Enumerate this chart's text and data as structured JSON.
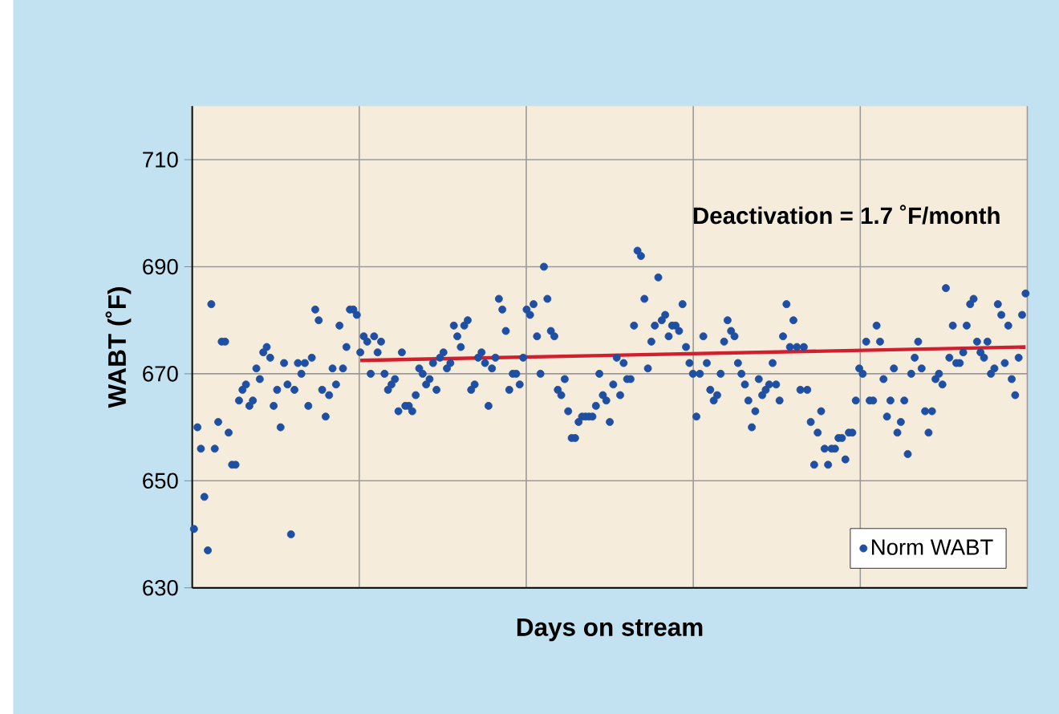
{
  "chart_data": {
    "type": "scatter",
    "xlabel": "Days on stream",
    "ylabel": "WABT (˚F)",
    "annotations": [
      "Deactivation = 1.7 ˚F/month"
    ],
    "categories": [
      null,
      null,
      null,
      null,
      null,
      null,
      null,
      null,
      null,
      null,
      null,
      null,
      null,
      null,
      null,
      null,
      null,
      null,
      null,
      null,
      null,
      null,
      null,
      null,
      null,
      null,
      null,
      null,
      null,
      null,
      null,
      null,
      null,
      null,
      null,
      null,
      null,
      null,
      null,
      null,
      null,
      null,
      null,
      null,
      null,
      null,
      null,
      null,
      null,
      null,
      null,
      null,
      null,
      null,
      null,
      null,
      null,
      null,
      null,
      null,
      null,
      null,
      null,
      null,
      null,
      null,
      null,
      null,
      null,
      null,
      null,
      null,
      null,
      null,
      null,
      null,
      null,
      null,
      null,
      null,
      null,
      null,
      null,
      null,
      null,
      null,
      null,
      null,
      null,
      null,
      null,
      null,
      null,
      null,
      null,
      null,
      null,
      null,
      null,
      null,
      null,
      null,
      null,
      null,
      null,
      null,
      null,
      null,
      null,
      null,
      null,
      null,
      null,
      null,
      null,
      null,
      null,
      null,
      null,
      null,
      null,
      null,
      null,
      null,
      null,
      null,
      null,
      null,
      null,
      null,
      null,
      null,
      null,
      null,
      null,
      null,
      null,
      null,
      null,
      null,
      null,
      null,
      null,
      null,
      null,
      null,
      null,
      null,
      null,
      null,
      null,
      null,
      null,
      null,
      null,
      null,
      null,
      null,
      null,
      null,
      null,
      null,
      null,
      null,
      null,
      null,
      null,
      null,
      null,
      null,
      null,
      null,
      null,
      null,
      null,
      null,
      null,
      null,
      null,
      null,
      null,
      null,
      null,
      null,
      null,
      null,
      null,
      null,
      null,
      null,
      null,
      null,
      null,
      null,
      null,
      null,
      null,
      null,
      null,
      null,
      null,
      null,
      null,
      null,
      null,
      null,
      null,
      null,
      null,
      null,
      null,
      null,
      null,
      null,
      null,
      null,
      null,
      null,
      null,
      null,
      null,
      null,
      null,
      null,
      null,
      null,
      null,
      null,
      null,
      null,
      null,
      null,
      null,
      null,
      null,
      null,
      null,
      null,
      null,
      null,
      null
    ],
    "series": [
      {
        "name": "Norm WABT",
        "marker": "circle",
        "color": "#1f4fa3",
        "values": [
          641,
          660,
          656,
          647,
          637,
          683,
          656,
          661,
          676,
          676,
          659,
          653,
          653,
          665,
          667,
          668,
          664,
          665,
          671,
          669,
          674,
          675,
          673,
          664,
          667,
          660,
          672,
          668,
          640,
          667,
          672,
          670,
          672,
          664,
          673,
          682,
          680,
          667,
          662,
          666,
          671,
          668,
          679,
          671,
          675,
          682,
          682,
          681,
          674,
          677,
          676,
          670,
          677,
          674,
          676,
          670,
          667,
          668,
          669,
          663,
          674,
          664,
          664,
          663,
          666,
          671,
          670,
          668,
          669,
          672,
          667,
          673,
          674,
          671,
          672,
          679,
          677,
          675,
          679,
          680,
          667,
          668,
          673,
          674,
          672,
          664,
          671,
          673,
          684,
          682,
          678,
          667,
          670,
          670,
          668,
          673,
          682,
          681,
          683,
          677,
          670,
          690,
          684,
          678,
          677,
          667,
          666,
          669,
          663,
          658,
          658,
          661,
          662,
          662,
          662,
          662,
          664,
          670,
          666,
          665,
          661,
          668,
          673,
          666,
          672,
          669,
          669,
          679,
          693,
          692,
          684,
          671,
          676,
          679,
          688,
          680,
          681,
          677,
          679,
          679,
          678,
          683,
          675,
          672,
          670,
          662,
          670,
          677,
          672,
          667,
          665,
          666,
          670,
          676,
          680,
          678,
          677,
          672,
          670,
          668,
          665,
          660,
          663,
          669,
          666,
          667,
          668,
          672,
          668,
          665,
          677,
          683,
          675,
          680,
          675,
          667,
          675,
          667,
          661,
          653,
          659,
          663,
          656,
          653,
          656,
          656,
          658,
          658,
          654,
          659,
          659,
          665,
          671,
          670,
          676,
          665,
          665,
          679,
          676,
          669,
          662,
          665,
          671,
          659,
          661,
          665,
          655,
          670,
          673,
          676,
          671,
          663,
          659,
          663,
          669,
          670,
          668,
          686,
          673,
          679,
          672,
          672,
          674,
          679,
          683,
          684,
          676,
          674,
          673,
          676,
          670,
          671,
          683,
          681,
          672,
          679,
          669,
          666,
          673,
          681,
          685
        ]
      },
      {
        "type": "line",
        "color": "#d0202e",
        "values": [
          null,
          null,
          null,
          null,
          null,
          null,
          null,
          null,
          null,
          null,
          null,
          null,
          null,
          null,
          null,
          null,
          null,
          null,
          null,
          null,
          null,
          null,
          null,
          null,
          null,
          null,
          null,
          null,
          null,
          null,
          null,
          null,
          null,
          null,
          null,
          null,
          null,
          null,
          null,
          null,
          null,
          null,
          null,
          null,
          null,
          null,
          null,
          null,
          672.5,
          null,
          null,
          null,
          null,
          null,
          null,
          null,
          null,
          null,
          null,
          null,
          null,
          null,
          null,
          null,
          null,
          null,
          null,
          null,
          null,
          null,
          null,
          null,
          null,
          null,
          null,
          null,
          null,
          null,
          null,
          null,
          null,
          null,
          null,
          null,
          null,
          null,
          null,
          null,
          null,
          null,
          null,
          null,
          null,
          null,
          null,
          null,
          null,
          null,
          null,
          null,
          null,
          null,
          null,
          null,
          null,
          null,
          null,
          null,
          null,
          null,
          null,
          null,
          null,
          null,
          null,
          null,
          null,
          null,
          null,
          null,
          null,
          null,
          null,
          null,
          null,
          null,
          null,
          null,
          null,
          null,
          null,
          null,
          null,
          null,
          null,
          null,
          null,
          null,
          null,
          null,
          null,
          null,
          null,
          null,
          null,
          null,
          null,
          null,
          null,
          null,
          null,
          null,
          null,
          null,
          null,
          null,
          null,
          null,
          null,
          null,
          null,
          null,
          null,
          null,
          null,
          null,
          null,
          null,
          null,
          null,
          null,
          null,
          null,
          null,
          null,
          null,
          null,
          null,
          null,
          null,
          null,
          null,
          null,
          null,
          null,
          null,
          null,
          null,
          null,
          null,
          null,
          null,
          null,
          null,
          null,
          null,
          null,
          null,
          null,
          null,
          null,
          null,
          null,
          null,
          null,
          null,
          null,
          null,
          null,
          null,
          null,
          null,
          null,
          null,
          null,
          null,
          null,
          null,
          null,
          null,
          null,
          null,
          null,
          null,
          null,
          null,
          null,
          null,
          null,
          null,
          null,
          null,
          null,
          null,
          null,
          null,
          null,
          null,
          null,
          null,
          675
        ]
      }
    ],
    "ylim": [
      630,
      720
    ],
    "yticks": [
      630,
      650,
      670,
      690,
      710
    ],
    "grid": true,
    "legend": "bottom right"
  }
}
